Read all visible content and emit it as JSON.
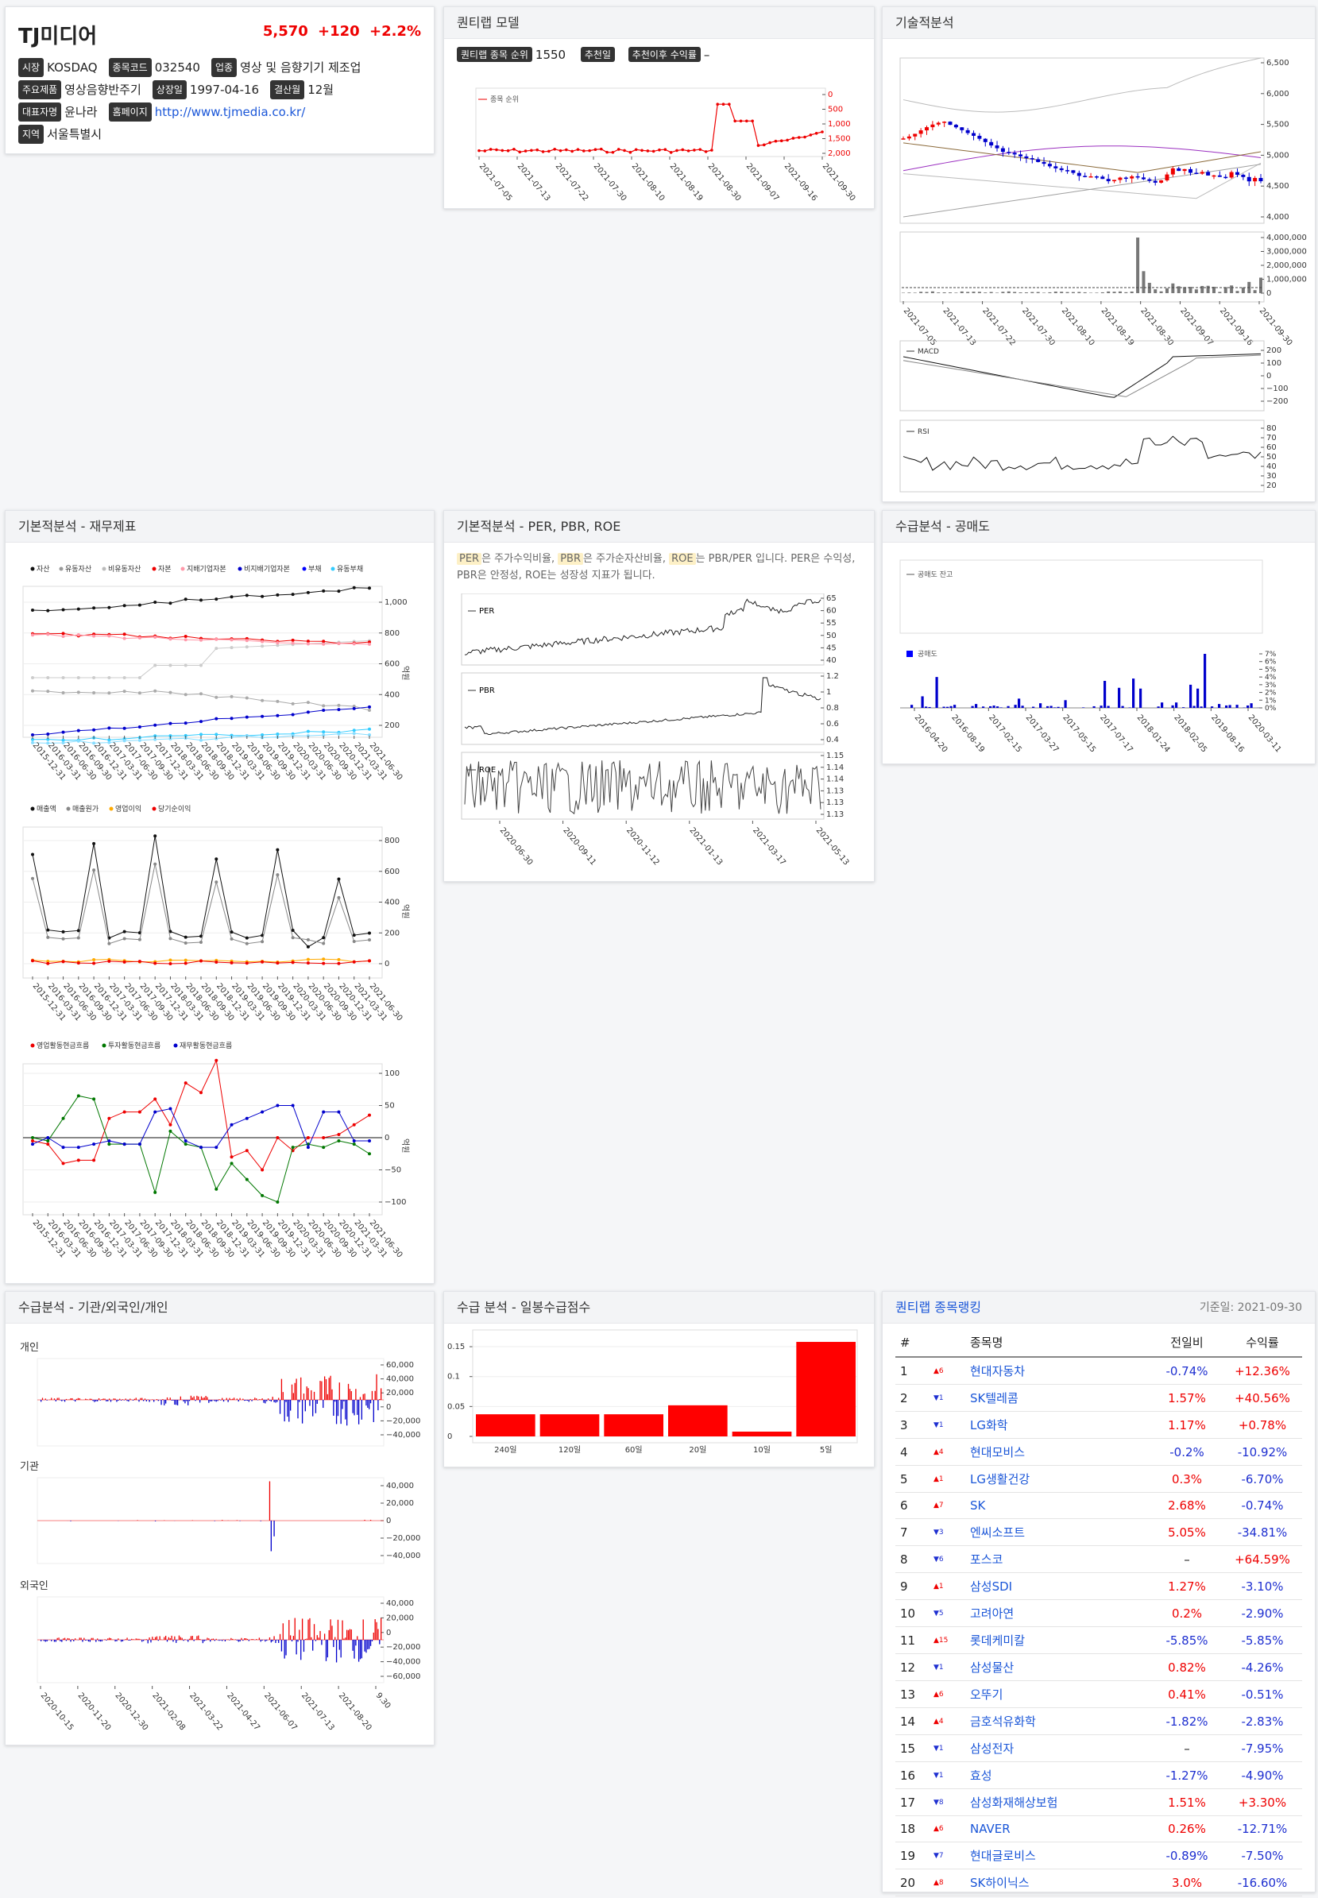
{
  "info": {
    "name": "TJ미디어",
    "price": "5,570",
    "chg": "+120",
    "pct": "+2.2%",
    "market_k": "시장",
    "market_v": "KOSDAQ",
    "code_k": "종목코드",
    "code_v": "032540",
    "ind_k": "업종",
    "ind_v": "영상 및 음향기기 제조업",
    "prod_k": "주요제품",
    "prod_v": "영상음향반주기",
    "list_k": "상장일",
    "list_v": "1997-04-16",
    "fy_k": "결산월",
    "fy_v": "12월",
    "ceo_k": "대표자명",
    "ceo_v": "윤나라",
    "home_k": "홈페이지",
    "home_v": "http://www.tjmedia.co.kr/",
    "reg_k": "지역",
    "reg_v": "서울특별시"
  },
  "quant": {
    "title": "퀀티랩 모델",
    "rank_k": "퀀티랩 종목 순위",
    "rank_v": "1550",
    "rec_k": "추천일",
    "ret_k": "추천이후 수익률",
    "ret_v": "–",
    "legend": "종목 순위",
    "yticks": [
      "0",
      "500",
      "1,000",
      "1,500",
      "2,000"
    ],
    "xticks": [
      "2021-07-05",
      "2021-07-13",
      "2021-07-22",
      "2021-07-30",
      "2021-08-10",
      "2021-08-19",
      "2021-08-30",
      "2021-09-07",
      "2021-09-16",
      "2021-09-30"
    ]
  },
  "tech": {
    "title": "기술적분석",
    "price_ticks": [
      "6,500",
      "6,000",
      "5,500",
      "5,000",
      "4,500",
      "4,000"
    ],
    "vol_ticks": [
      "4,000,000",
      "3,000,000",
      "2,000,000",
      "1,000,000",
      "0"
    ],
    "xticks": [
      "2021-07-05",
      "2021-07-13",
      "2021-07-22",
      "2021-07-30",
      "2021-08-10",
      "2021-08-19",
      "2021-08-30",
      "2021-09-07",
      "2021-09-16",
      "2021-09-30"
    ],
    "macd_label": "MACD",
    "macd_ticks": [
      "200",
      "100",
      "0",
      "−100",
      "−200"
    ],
    "rsi_label": "RSI",
    "rsi_ticks": [
      "80",
      "70",
      "60",
      "50",
      "40",
      "30",
      "20"
    ]
  },
  "fund": {
    "title": "기본적분석 - 재무제표",
    "legend1": [
      "자산",
      "유동자산",
      "비유동자산",
      "자본",
      "지배기업자본",
      "비지배기업자본",
      "부채",
      "유동부채"
    ],
    "ticks1": [
      "1,000",
      "800",
      "600",
      "400",
      "200"
    ],
    "legend2": [
      "매출액",
      "매출원가",
      "영업이익",
      "당기순이익"
    ],
    "ticks2": [
      "800",
      "600",
      "400",
      "200",
      "0"
    ],
    "legend3": [
      "영업활동현금흐름",
      "투자활동현금흐름",
      "재무활동현금흐름"
    ],
    "ticks3": [
      "100",
      "50",
      "0",
      "−50",
      "−100"
    ],
    "unit": "억원",
    "dates": [
      "2015-12-31",
      "2016-03-31",
      "2016-06-30",
      "2016-09-30",
      "2016-12-31",
      "2017-03-31",
      "2017-06-30",
      "2017-09-30",
      "2017-12-31",
      "2018-03-31",
      "2018-06-30",
      "2018-09-30",
      "2018-12-31",
      "2019-03-31",
      "2019-06-30",
      "2019-09-30",
      "2019-12-31",
      "2020-03-31",
      "2020-06-30",
      "2020-09-30",
      "2020-12-31",
      "2021-03-31",
      "2021-06-30"
    ]
  },
  "per": {
    "title": "기본적분석 - PER, PBR, ROE",
    "desc_a": "PER",
    "desc_b": "은 주가수익비율, ",
    "desc_c": "PBR",
    "desc_d": "은 주가순자산비율, ",
    "desc_e": "ROE",
    "desc_f": "는 PBR/PER 입니다. PER은 수익성, PBR은 안정성, ROE는 성장성 지표가 됩니다.",
    "l1": "PER",
    "t1": [
      "65",
      "60",
      "55",
      "50",
      "45",
      "40"
    ],
    "l2": "PBR",
    "t2": [
      "1.2",
      "1",
      "0.8",
      "0.6",
      "0.4"
    ],
    "l3": "ROE",
    "t3": [
      "1.15",
      "1.14",
      "1.14",
      "1.13",
      "1.13",
      "1.13"
    ],
    "xticks": [
      "2020-06-30",
      "2020-09-11",
      "2020-11-12",
      "2021-01-13",
      "2021-03-17",
      "2021-05-13"
    ]
  },
  "short": {
    "title": "수급분석 - 공매도",
    "l1": "공매도 잔고",
    "l2": "공매도",
    "ticks": [
      "7%",
      "6%",
      "5%",
      "4%",
      "3%",
      "2%",
      "1%",
      "0%"
    ],
    "xticks": [
      "2016-04-20",
      "2016-08-19",
      "2017-02-15",
      "2017-03-27",
      "2017-05-15",
      "2017-07-17",
      "2018-01-24",
      "2018-02-05",
      "2019-08-16",
      "2020-03-11"
    ]
  },
  "flow": {
    "title": "수급분석 - 기관/외국인/개인",
    "p1": "개인",
    "t1": [
      "60,000",
      "40,000",
      "20,000",
      "0",
      "−20,000",
      "−40,000"
    ],
    "p2": "기관",
    "t2": [
      "40,000",
      "20,000",
      "0",
      "−20,000",
      "−40,000"
    ],
    "p3": "외국인",
    "t3": [
      "40,000",
      "20,000",
      "0",
      "−20,000",
      "−40,000",
      "−60,000"
    ],
    "xticks": [
      "2020-10-15",
      "2020-11-20",
      "2020-12-30",
      "2021-02-08",
      "2021-03-22",
      "2021-04-27",
      "2021-06-07",
      "2021-07-13",
      "2021-08-20",
      "9.30"
    ]
  },
  "score": {
    "title": "수급 분석 - 일봉수급점수",
    "ticks": [
      "0.15",
      "0.1",
      "0.05",
      "0"
    ]
  },
  "score_chart": {
    "type": "bar",
    "categories": [
      "240일",
      "120일",
      "60일",
      "20일",
      "10일",
      "5일"
    ],
    "values": [
      0.037,
      0.037,
      0.037,
      0.052,
      0.008,
      0.158
    ],
    "ylim": [
      0,
      0.17
    ]
  },
  "rank": {
    "title": "퀀티랩 종목랭킹",
    "date": "기준일: 2021-09-30",
    "h": [
      "#",
      "종목명",
      "전일비",
      "수익률"
    ],
    "rows": [
      {
        "n": "1",
        "d": "▲6",
        "name": "현대자동차",
        "c": "-0.74%",
        "r": "+12.36%",
        "u": 1,
        "cu": 0,
        "ru": 1
      },
      {
        "n": "2",
        "d": "▼1",
        "name": "SK텔레콤",
        "c": "1.57%",
        "r": "+40.56%",
        "u": 0,
        "cu": 1,
        "ru": 1
      },
      {
        "n": "3",
        "d": "▼1",
        "name": "LG화학",
        "c": "1.17%",
        "r": "+0.78%",
        "u": 0,
        "cu": 1,
        "ru": 1
      },
      {
        "n": "4",
        "d": "▲4",
        "name": "현대모비스",
        "c": "-0.2%",
        "r": "-10.92%",
        "u": 1,
        "cu": 0,
        "ru": 0
      },
      {
        "n": "5",
        "d": "▲1",
        "name": "LG생활건강",
        "c": "0.3%",
        "r": "-6.70%",
        "u": 1,
        "cu": 1,
        "ru": 0
      },
      {
        "n": "6",
        "d": "▲7",
        "name": "SK",
        "c": "2.68%",
        "r": "-0.74%",
        "u": 1,
        "cu": 1,
        "ru": 0
      },
      {
        "n": "7",
        "d": "▼3",
        "name": "엔씨소프트",
        "c": "5.05%",
        "r": "-34.81%",
        "u": 0,
        "cu": 1,
        "ru": 0
      },
      {
        "n": "8",
        "d": "▼6",
        "name": "포스코",
        "c": "–",
        "r": "+64.59%",
        "u": 0,
        "cu": 2,
        "ru": 1
      },
      {
        "n": "9",
        "d": "▲1",
        "name": "삼성SDI",
        "c": "1.27%",
        "r": "-3.10%",
        "u": 1,
        "cu": 1,
        "ru": 0
      },
      {
        "n": "10",
        "d": "▼5",
        "name": "고려아연",
        "c": "0.2%",
        "r": "-2.90%",
        "u": 0,
        "cu": 1,
        "ru": 0
      },
      {
        "n": "11",
        "d": "▲15",
        "name": "롯데케미칼",
        "c": "-5.85%",
        "r": "-5.85%",
        "u": 1,
        "cu": 0,
        "ru": 0
      },
      {
        "n": "12",
        "d": "▼1",
        "name": "삼성물산",
        "c": "0.82%",
        "r": "-4.26%",
        "u": 0,
        "cu": 1,
        "ru": 0
      },
      {
        "n": "13",
        "d": "▲6",
        "name": "오뚜기",
        "c": "0.41%",
        "r": "-0.51%",
        "u": 1,
        "cu": 1,
        "ru": 0
      },
      {
        "n": "14",
        "d": "▲4",
        "name": "금호석유화학",
        "c": "-1.82%",
        "r": "-2.83%",
        "u": 1,
        "cu": 0,
        "ru": 0
      },
      {
        "n": "15",
        "d": "▼1",
        "name": "삼성전자",
        "c": "–",
        "r": "-7.95%",
        "u": 0,
        "cu": 2,
        "ru": 0
      },
      {
        "n": "16",
        "d": "▼1",
        "name": "효성",
        "c": "-1.27%",
        "r": "-4.90%",
        "u": 0,
        "cu": 0,
        "ru": 0
      },
      {
        "n": "17",
        "d": "▼8",
        "name": "삼성화재해상보험",
        "c": "1.51%",
        "r": "+3.30%",
        "u": 0,
        "cu": 1,
        "ru": 1
      },
      {
        "n": "18",
        "d": "▲6",
        "name": "NAVER",
        "c": "0.26%",
        "r": "-12.71%",
        "u": 1,
        "cu": 1,
        "ru": 0
      },
      {
        "n": "19",
        "d": "▼7",
        "name": "현대글로비스",
        "c": "-0.89%",
        "r": "-7.50%",
        "u": 0,
        "cu": 0,
        "ru": 0
      },
      {
        "n": "20",
        "d": "▲8",
        "name": "SK하이닉스",
        "c": "3.0%",
        "r": "-16.60%",
        "u": 1,
        "cu": 1,
        "ru": 0
      }
    ]
  }
}
